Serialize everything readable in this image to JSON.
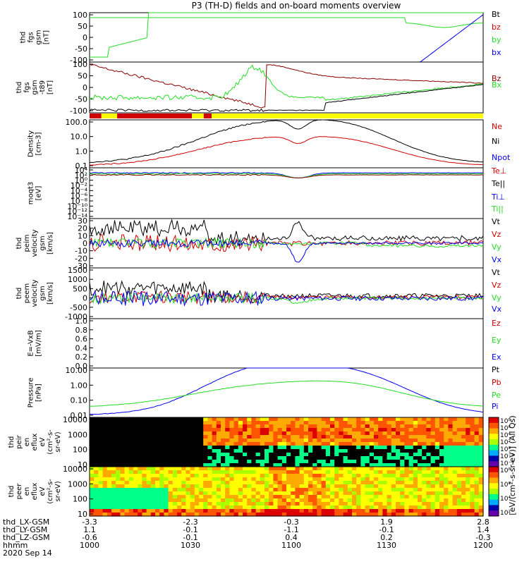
{
  "title": "P3 (TH-D) fields and on-board moments overview",
  "colors": {
    "black": "#000000",
    "red": "#d00000",
    "green": "#22dd22",
    "blue": "#0000ee",
    "yellow": "#ffff00",
    "darkred": "#8b0000"
  },
  "chart_data": [
    {
      "type": "line",
      "id": "fgs_gsm",
      "ylabel": [
        "thd",
        "fgs",
        "gsm",
        "[nT]"
      ],
      "yticks": [
        "100",
        "50",
        "0",
        "-50",
        "-100"
      ],
      "ylim": [
        -100,
        100
      ],
      "legend": [
        {
          "label": "Bt",
          "color": "black"
        },
        {
          "label": "bz",
          "color": "red"
        },
        {
          "label": "by",
          "color": "green"
        },
        {
          "label": "bx",
          "color": "blue"
        }
      ]
    },
    {
      "type": "line",
      "id": "fgs_gsm_t89",
      "ylabel": [
        "thd",
        "fgs",
        "gsm",
        "-t89",
        "[nT]"
      ],
      "yticks": [
        "100",
        "50",
        "0",
        "-50",
        "-100"
      ],
      "ylim": [
        -120,
        120
      ],
      "legend": [
        {
          "label": "Bz",
          "color": "darkred"
        },
        {
          "label": "Bx",
          "color": "green"
        }
      ]
    },
    {
      "type": "bar",
      "id": "mode_bar",
      "segments": [
        "red",
        "yellow",
        "red",
        "yellow",
        "red",
        "yellow"
      ]
    },
    {
      "type": "line",
      "id": "density",
      "ylabel": [
        "Density",
        "[cm-3]"
      ],
      "yticks": [
        "100.0",
        "10.0",
        "1.0",
        "0.1"
      ],
      "scale": "log",
      "legend": [
        {
          "label": "Ne",
          "color": "red"
        },
        {
          "label": "Ni",
          "color": "black"
        },
        {
          "label": "Npot",
          "color": "blue"
        }
      ]
    },
    {
      "type": "line",
      "id": "temperature",
      "ylabel": [
        "moqt3",
        "[eV]"
      ],
      "yticks": [
        "10⁴",
        "10²",
        "10⁰",
        "10⁻²",
        "10⁻⁴",
        "10⁻⁶",
        "10⁻⁸",
        "10⁻¹⁰",
        "10⁻¹²",
        "10⁻¹⁴"
      ],
      "scale": "log",
      "legend": [
        {
          "label": "Te⊥",
          "color": "red"
        },
        {
          "label": "Te||",
          "color": "black"
        },
        {
          "label": "Ti⊥",
          "color": "blue"
        },
        {
          "label": "Ti||",
          "color": "green"
        }
      ]
    },
    {
      "type": "line",
      "id": "peim_velocity",
      "ylabel": [
        "thd",
        "peim",
        "velocity",
        "gsm",
        "[km/s]"
      ],
      "yticks": [
        "30",
        "20",
        "10",
        "0",
        "-10",
        "-20",
        "-30"
      ],
      "ylim": [
        -30,
        30
      ],
      "legend": [
        {
          "label": "Vt",
          "color": "black"
        },
        {
          "label": "Vz",
          "color": "red"
        },
        {
          "label": "Vy",
          "color": "green"
        },
        {
          "label": "Vx",
          "color": "blue"
        }
      ]
    },
    {
      "type": "line",
      "id": "peem_velocity",
      "ylabel": [
        "thd",
        "peem",
        "velocity",
        "gsm",
        "[km/s]"
      ],
      "yticks": [
        "1500",
        "1000",
        "500",
        "0",
        "-500",
        "-1000"
      ],
      "ylim": [
        -1000,
        1500
      ],
      "legend": [
        {
          "label": "Vt",
          "color": "black"
        },
        {
          "label": "Vz",
          "color": "red"
        },
        {
          "label": "Vy",
          "color": "green"
        },
        {
          "label": "Vx",
          "color": "blue"
        }
      ]
    },
    {
      "type": "line",
      "id": "efield",
      "ylabel": [
        "E=-VxB",
        "[mV/m]"
      ],
      "yticks": [
        "1.0",
        "0.8",
        "0.6",
        "0.4",
        "0.2",
        "0.0"
      ],
      "ylim": [
        0,
        1
      ],
      "legend": [
        {
          "label": "Ez",
          "color": "red"
        },
        {
          "label": "Ey",
          "color": "green"
        },
        {
          "label": "Ex",
          "color": "blue"
        }
      ]
    },
    {
      "type": "line",
      "id": "pressure",
      "ylabel": [
        "Pressure",
        "[nPa]"
      ],
      "yticks": [
        "10.00",
        "1.00",
        "0.10",
        "0.01"
      ],
      "scale": "log",
      "legend": [
        {
          "label": "Pt",
          "color": "black"
        },
        {
          "label": "Pb",
          "color": "red"
        },
        {
          "label": "Pe",
          "color": "green"
        },
        {
          "label": "Pi",
          "color": "blue"
        }
      ]
    },
    {
      "type": "heatmap",
      "id": "peir_spectrogram",
      "ylabel": [
        "thd",
        "peir",
        "en",
        "eflux",
        "eV",
        "(cm²-s-",
        "sr-eV)"
      ],
      "yticks": [
        "10000",
        "1000",
        "100",
        "10"
      ],
      "colorbar_ticks": [
        "10⁸",
        "10⁶",
        "10⁴",
        "10²",
        "10⁰",
        "10⁻²",
        "10⁻⁴"
      ]
    },
    {
      "type": "heatmap",
      "id": "peer_spectrogram",
      "ylabel": [
        "thd",
        "peer",
        "en",
        "eflux",
        "eV",
        "(cm²-s-",
        "sr-eV)"
      ],
      "yticks": [
        "10000",
        "1000",
        "100",
        "10"
      ],
      "colorbar_ticks": [
        "10⁸",
        "10⁶",
        "10⁴",
        "10²"
      ]
    }
  ],
  "colorbar_label": "[eV/(cm²-s-sr-eV)] (All Qs)",
  "x_axis": {
    "row_labels": [
      "thd_LX-GSM",
      "thd_LY-GSM",
      "thd_LZ-GSM",
      "hhmm",
      "2020 Sep 14"
    ],
    "columns": [
      {
        "x": "-3.3",
        "y": "1.1",
        "z": "-0.6",
        "hhmm": "1000"
      },
      {
        "x": "-2.3",
        "y": "-0.1",
        "z": "-0.1",
        "hhmm": "1030"
      },
      {
        "x": "-0.3",
        "y": "-1.1",
        "z": "0.4",
        "hhmm": "1100"
      },
      {
        "x": "1.9",
        "y": "-0.1",
        "z": "0.2",
        "hhmm": "1130"
      },
      {
        "x": "2.8",
        "y": "1.4",
        "z": "-0.3",
        "hhmm": "1200"
      }
    ]
  }
}
